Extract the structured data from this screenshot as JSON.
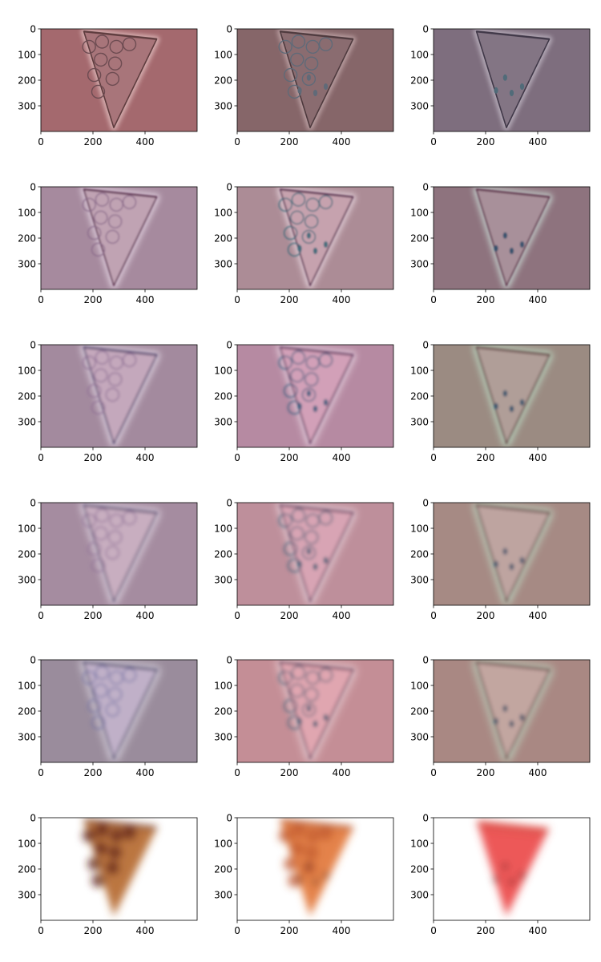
{
  "figure": {
    "rows": 6,
    "cols": 3
  },
  "chart_data": {
    "type": "image_grid",
    "title": "",
    "xlabel": "",
    "ylabel": "",
    "xlim": [
      0,
      600
    ],
    "ylim": [
      400,
      0
    ],
    "x_ticks": [
      0,
      200,
      400
    ],
    "y_ticks": [
      0,
      100,
      200,
      300
    ],
    "x_tick_labels": [
      "0",
      "200",
      "400"
    ],
    "y_tick_labels": [
      "0",
      "100",
      "200",
      "300"
    ],
    "grid": false,
    "legend": "none",
    "slice": {
      "apex": [
        280,
        385
      ],
      "left_top": [
        165,
        10
      ],
      "right_top": [
        445,
        40
      ],
      "pepperoni": [
        [
          185,
          70
        ],
        [
          235,
          50
        ],
        [
          290,
          70
        ],
        [
          340,
          60
        ],
        [
          230,
          120
        ],
        [
          285,
          135
        ],
        [
          205,
          180
        ],
        [
          275,
          195
        ],
        [
          220,
          245
        ]
      ],
      "seeds": [
        [
          240,
          240
        ],
        [
          300,
          250
        ],
        [
          340,
          225
        ],
        [
          275,
          190
        ]
      ]
    },
    "panels": [
      {
        "bg": "#a4696e",
        "mode": "filter",
        "fill": "#a8757a",
        "edge": "#5e3c3e",
        "glow": "#e6c4c4",
        "spot": "#6a4a50",
        "show_pepperoni": true,
        "show_seeds": false,
        "blur": 0
      },
      {
        "bg": "#866669",
        "mode": "filter",
        "fill": "#8a6c70",
        "edge": "#4e3a3e",
        "glow": "#c8aeb0",
        "spot": "#5e6a78",
        "show_pepperoni": true,
        "show_seeds": true,
        "blur": 0
      },
      {
        "bg": "#7e6e7e",
        "mode": "filter",
        "fill": "#837584",
        "edge": "#403848",
        "glow": "#c4bcc8",
        "spot": "#4e6a78",
        "show_pepperoni": false,
        "show_seeds": true,
        "blur": 0
      },
      {
        "bg": "#a68a9e",
        "mode": "filter",
        "fill": "#c0a3b3",
        "edge": "#5a2e4e",
        "glow": "#f2e6f2",
        "spot": "#8a6a8a",
        "show_pepperoni": true,
        "show_seeds": false,
        "blur": 1
      },
      {
        "bg": "#ac8c96",
        "mode": "filter",
        "fill": "#c6a2ae",
        "edge": "#5a3050",
        "glow": "#f4e6ee",
        "spot": "#3e6a7a",
        "show_pepperoni": true,
        "show_seeds": true,
        "blur": 1
      },
      {
        "bg": "#8e737e",
        "mode": "filter",
        "fill": "#a8909a",
        "edge": "#5c2c46",
        "glow": "#d6f0e6",
        "spot": "#2e4e6a",
        "show_pepperoni": false,
        "show_seeds": true,
        "blur": 1
      },
      {
        "bg": "#a38a9e",
        "mode": "filter",
        "fill": "#c4a8bc",
        "edge": "#3e2e5e",
        "glow": "#f6f0fa",
        "spot": "#8c6c92",
        "show_pepperoni": true,
        "show_seeds": false,
        "blur": 1.5
      },
      {
        "bg": "#b68aa2",
        "mode": "filter",
        "fill": "#d2a0b8",
        "edge": "#5a2a56",
        "glow": "#f4e8f2",
        "spot": "#2e5a7a",
        "show_pepperoni": true,
        "show_seeds": true,
        "blur": 1.5
      },
      {
        "bg": "#9b8b82",
        "mode": "filter",
        "fill": "#b09e98",
        "edge": "#5a3434",
        "glow": "#c6f2d8",
        "spot": "#2a4e6a",
        "show_pepperoni": false,
        "show_seeds": true,
        "blur": 1.5
      },
      {
        "bg": "#a58ca0",
        "mode": "filter",
        "fill": "#c8aec0",
        "edge": "#3a2a5c",
        "glow": "#f8f4fc",
        "spot": "#8a6a92",
        "show_pepperoni": true,
        "show_seeds": false,
        "blur": 2
      },
      {
        "bg": "#be8f9b",
        "mode": "filter",
        "fill": "#d8a4b4",
        "edge": "#5a2a52",
        "glow": "#f6eaf0",
        "spot": "#2a5a72",
        "show_pepperoni": true,
        "show_seeds": true,
        "blur": 2
      },
      {
        "bg": "#a68a84",
        "mode": "filter",
        "fill": "#bea4a0",
        "edge": "#5c3232",
        "glow": "#c8f4da",
        "spot": "#2a4a66",
        "show_pepperoni": false,
        "show_seeds": true,
        "blur": 2
      },
      {
        "bg": "#9a8c9c",
        "mode": "filter",
        "fill": "#c0b0c8",
        "edge": "#2e2a58",
        "glow": "#f8f6fe",
        "spot": "#6a6aa0",
        "show_pepperoni": true,
        "show_seeds": false,
        "blur": 2.5
      },
      {
        "bg": "#c48e96",
        "mode": "filter",
        "fill": "#e0a6b0",
        "edge": "#582a4e",
        "glow": "#f8ecf0",
        "spot": "#2a5670",
        "show_pepperoni": true,
        "show_seeds": true,
        "blur": 2.5
      },
      {
        "bg": "#a98883",
        "mode": "filter",
        "fill": "#c2a6a0",
        "edge": "#5c3030",
        "glow": "#c8f6dc",
        "spot": "#2a4862",
        "show_pepperoni": false,
        "show_seeds": true,
        "blur": 2.5
      },
      {
        "bg": "#ffffff",
        "mode": "photo",
        "fill": "#b56a32",
        "edge": "#6a2a1a",
        "glow": "#ffffff",
        "spot": "#5a1a16",
        "show_pepperoni": true,
        "show_seeds": false,
        "blur": 5,
        "rind": "none"
      },
      {
        "bg": "#ffffff",
        "mode": "photo",
        "fill": "#e2783a",
        "edge": "#b04a22",
        "glow": "#ffffff",
        "spot": "#c25a30",
        "show_pepperoni": true,
        "show_seeds": true,
        "seed_color": "#2a1c20",
        "blur": 5,
        "rind": "none"
      },
      {
        "bg": "#ffffff",
        "mode": "photo",
        "fill": "#ec4a4a",
        "edge": "#c82e2e",
        "glow": "#ffffff",
        "spot": "#c23a3a",
        "show_pepperoni": false,
        "show_seeds": true,
        "seed_color": "#1e1416",
        "blur": 5,
        "rind": "#4caa60"
      }
    ]
  }
}
